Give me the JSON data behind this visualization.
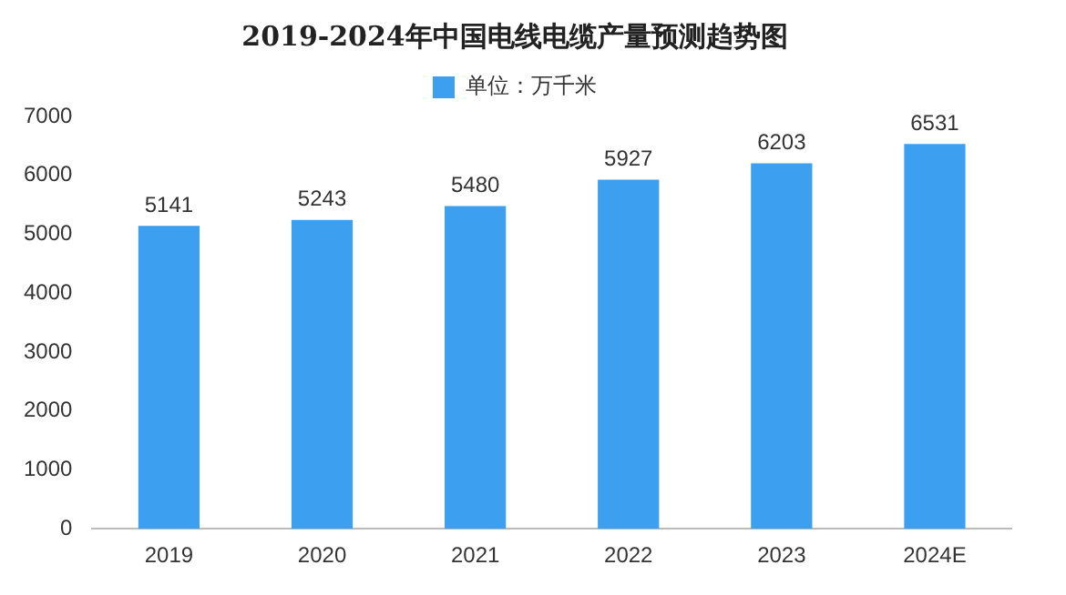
{
  "chart_data": {
    "type": "bar",
    "title": "2019-2024年中国电线电缆产量预测趋势图",
    "categories": [
      "2019",
      "2020",
      "2021",
      "2022",
      "2023",
      "2024E"
    ],
    "series": [
      {
        "name": "单位：万千米",
        "color": "#3d9ff0",
        "values": [
          5141,
          5243,
          5480,
          5927,
          6203,
          6531
        ]
      }
    ],
    "ylim": [
      0,
      7000
    ],
    "yticks": [
      0,
      1000,
      2000,
      3000,
      4000,
      5000,
      6000,
      7000
    ],
    "grid": false,
    "legend": "top",
    "data_labels": true
  }
}
